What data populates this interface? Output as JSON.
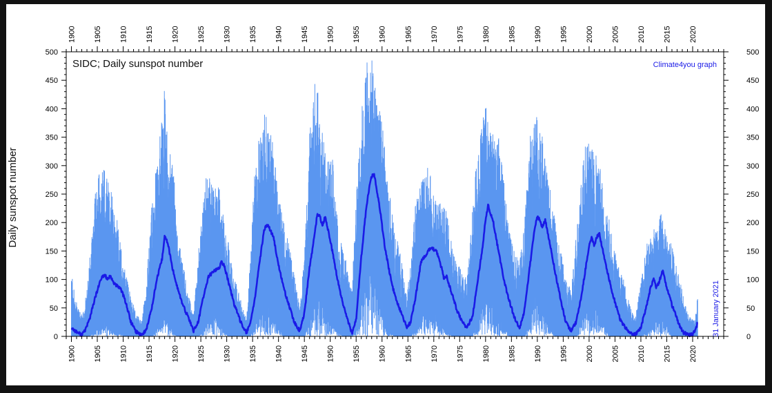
{
  "chart_data": {
    "type": "line",
    "title": "SIDC; Daily sunspot number",
    "credit": "Climate4you graph",
    "ylabel": "Daily sunspot number",
    "xlabel": "",
    "date_annotation": "31 January 2021",
    "xlim": [
      1899,
      2026
    ],
    "ylim": [
      0,
      500
    ],
    "x_ticks_major": [
      1900,
      1905,
      1910,
      1915,
      1920,
      1925,
      1930,
      1935,
      1940,
      1945,
      1950,
      1955,
      1960,
      1965,
      1970,
      1975,
      1980,
      1985,
      1990,
      1995,
      2000,
      2005,
      2010,
      2015,
      2020
    ],
    "y_ticks": [
      0,
      50,
      100,
      150,
      200,
      250,
      300,
      350,
      400,
      450,
      500
    ],
    "grid": false,
    "legend": "none",
    "series": [
      {
        "role": "daily",
        "color": "#5a96f0",
        "x": [
          1900.0,
          1901.0,
          1901.9,
          1902.5,
          1903.5,
          1904.5,
          1905.5,
          1906.5,
          1907.5,
          1908.5,
          1909.5,
          1910.5,
          1911.5,
          1912.5,
          1913.6,
          1914.5,
          1915.5,
          1916.5,
          1917.5,
          1918.0,
          1918.6,
          1919.5,
          1920.5,
          1921.5,
          1922.5,
          1923.6,
          1924.5,
          1925.5,
          1926.5,
          1927.5,
          1928.5,
          1929.5,
          1930.5,
          1931.5,
          1932.5,
          1933.8,
          1934.5,
          1935.5,
          1936.5,
          1937.3,
          1938.0,
          1939.0,
          1940.0,
          1941.0,
          1942.0,
          1943.0,
          1944.1,
          1945.0,
          1946.0,
          1947.0,
          1947.5,
          1948.5,
          1949.5,
          1950.5,
          1951.5,
          1952.5,
          1953.5,
          1954.2,
          1955.0,
          1956.0,
          1957.0,
          1957.9,
          1958.5,
          1959.5,
          1960.5,
          1961.5,
          1962.5,
          1963.5,
          1964.8,
          1965.5,
          1966.5,
          1967.5,
          1968.9,
          1969.5,
          1970.5,
          1971.5,
          1972.5,
          1973.5,
          1974.5,
          1975.5,
          1976.4,
          1977.5,
          1978.5,
          1979.5,
          1979.9,
          1980.5,
          1981.5,
          1982.5,
          1983.5,
          1984.5,
          1985.5,
          1986.6,
          1987.5,
          1988.5,
          1989.5,
          1989.9,
          1990.5,
          1991.5,
          1992.5,
          1993.5,
          1994.5,
          1995.5,
          1996.5,
          1997.5,
          1998.5,
          1999.5,
          2000.5,
          2001.5,
          2002.0,
          2003.0,
          2004.0,
          2005.0,
          2006.0,
          2007.0,
          2008.0,
          2008.9,
          2010.0,
          2011.0,
          2012.0,
          2013.0,
          2014.0,
          2015.0,
          2016.0,
          2017.0,
          2018.0,
          2019.0,
          2019.9,
          2020.5,
          2021.0
        ],
        "max": [
          110,
          60,
          40,
          45,
          140,
          250,
          300,
          290,
          280,
          230,
          160,
          110,
          70,
          40,
          30,
          90,
          250,
          300,
          390,
          450,
          340,
          330,
          180,
          130,
          80,
          40,
          140,
          270,
          290,
          260,
          270,
          200,
          160,
          110,
          70,
          30,
          130,
          310,
          360,
          390,
          380,
          340,
          250,
          200,
          170,
          110,
          50,
          150,
          360,
          460,
          440,
          360,
          320,
          310,
          190,
          160,
          110,
          80,
          250,
          400,
          480,
          505,
          450,
          410,
          340,
          250,
          190,
          150,
          70,
          130,
          240,
          270,
          300,
          280,
          230,
          240,
          220,
          160,
          130,
          120,
          100,
          230,
          340,
          380,
          430,
          380,
          360,
          350,
          280,
          200,
          150,
          130,
          200,
          350,
          380,
          390,
          360,
          340,
          260,
          200,
          150,
          110,
          80,
          180,
          280,
          350,
          330,
          320,
          320,
          240,
          200,
          150,
          120,
          90,
          50,
          30,
          100,
          160,
          180,
          200,
          220,
          180,
          160,
          120,
          80,
          40,
          30,
          30,
          80
        ],
        "min": [
          0,
          0,
          0,
          0,
          0,
          10,
          20,
          30,
          20,
          10,
          5,
          0,
          0,
          0,
          0,
          0,
          0,
          20,
          40,
          50,
          30,
          10,
          0,
          0,
          0,
          0,
          0,
          10,
          30,
          40,
          30,
          10,
          0,
          0,
          0,
          0,
          0,
          20,
          60,
          80,
          60,
          40,
          20,
          0,
          0,
          0,
          0,
          0,
          30,
          70,
          80,
          60,
          40,
          30,
          10,
          0,
          0,
          0,
          10,
          60,
          120,
          150,
          120,
          80,
          40,
          10,
          0,
          0,
          0,
          0,
          10,
          40,
          60,
          50,
          40,
          20,
          10,
          0,
          0,
          0,
          0,
          0,
          40,
          80,
          100,
          80,
          70,
          50,
          20,
          0,
          0,
          0,
          0,
          40,
          80,
          90,
          70,
          50,
          20,
          0,
          0,
          0,
          0,
          0,
          30,
          60,
          60,
          50,
          40,
          20,
          0,
          0,
          0,
          0,
          0,
          0,
          0,
          10,
          20,
          30,
          30,
          20,
          0,
          0,
          0,
          0,
          0,
          0,
          0
        ]
      },
      {
        "role": "smoothed",
        "color": "#1a1ae6",
        "x": [
          1900.0,
          1901.0,
          1901.9,
          1902.5,
          1903.5,
          1904.5,
          1905.5,
          1906.0,
          1906.5,
          1907.0,
          1907.5,
          1908.5,
          1909.5,
          1910.5,
          1911.5,
          1912.5,
          1913.6,
          1914.5,
          1915.5,
          1916.5,
          1917.5,
          1918.0,
          1918.6,
          1919.5,
          1920.5,
          1921.5,
          1922.5,
          1923.6,
          1924.5,
          1925.5,
          1926.5,
          1927.5,
          1928.5,
          1929.0,
          1929.5,
          1930.5,
          1931.5,
          1932.5,
          1933.8,
          1934.5,
          1935.5,
          1936.5,
          1937.3,
          1938.0,
          1939.0,
          1940.0,
          1941.0,
          1942.0,
          1943.0,
          1944.1,
          1945.0,
          1946.0,
          1947.0,
          1947.5,
          1948.0,
          1948.5,
          1949.0,
          1949.5,
          1950.5,
          1951.5,
          1952.5,
          1953.5,
          1954.2,
          1955.0,
          1956.0,
          1957.0,
          1957.9,
          1958.5,
          1959.5,
          1960.5,
          1961.5,
          1962.5,
          1963.5,
          1964.8,
          1965.5,
          1966.5,
          1967.5,
          1968.9,
          1969.5,
          1970.5,
          1971.5,
          1972.0,
          1972.5,
          1973.5,
          1974.5,
          1975.5,
          1976.4,
          1977.5,
          1978.5,
          1979.5,
          1979.9,
          1980.5,
          1981.0,
          1981.5,
          1982.5,
          1983.5,
          1984.5,
          1985.5,
          1986.6,
          1987.5,
          1988.5,
          1989.5,
          1989.9,
          1990.5,
          1991.0,
          1991.5,
          1992.5,
          1993.5,
          1994.5,
          1995.5,
          1996.5,
          1997.5,
          1998.5,
          1999.5,
          2000.0,
          2000.5,
          2001.0,
          2001.5,
          2002.0,
          2003.0,
          2004.0,
          2005.0,
          2006.0,
          2007.0,
          2008.0,
          2008.9,
          2010.0,
          2011.0,
          2012.0,
          2012.5,
          2013.0,
          2013.5,
          2014.0,
          2014.3,
          2015.0,
          2016.0,
          2017.0,
          2018.0,
          2019.0,
          2019.9,
          2020.5,
          2021.0
        ],
        "y": [
          15,
          8,
          3,
          8,
          30,
          65,
          95,
          105,
          108,
          100,
          105,
          90,
          85,
          60,
          25,
          8,
          3,
          12,
          50,
          100,
          135,
          175,
          165,
          120,
          85,
          55,
          35,
          10,
          25,
          70,
          105,
          115,
          120,
          130,
          125,
          90,
          55,
          30,
          6,
          20,
          70,
          140,
          190,
          195,
          175,
          125,
          85,
          55,
          25,
          10,
          40,
          120,
          180,
          215,
          210,
          195,
          210,
          190,
          145,
          95,
          55,
          25,
          5,
          30,
          140,
          230,
          280,
          285,
          230,
          160,
          110,
          70,
          45,
          15,
          25,
          70,
          130,
          150,
          155,
          150,
          120,
          100,
          105,
          75,
          45,
          25,
          15,
          35,
          100,
          160,
          200,
          230,
          215,
          200,
          150,
          100,
          65,
          35,
          15,
          45,
          120,
          190,
          210,
          205,
          190,
          205,
          160,
          110,
          65,
          25,
          10,
          25,
          70,
          130,
          160,
          175,
          160,
          175,
          180,
          135,
          95,
          60,
          30,
          15,
          5,
          3,
          15,
          50,
          90,
          100,
          85,
          95,
          110,
          115,
          85,
          55,
          30,
          8,
          3,
          3,
          10,
          25
        ]
      }
    ]
  }
}
